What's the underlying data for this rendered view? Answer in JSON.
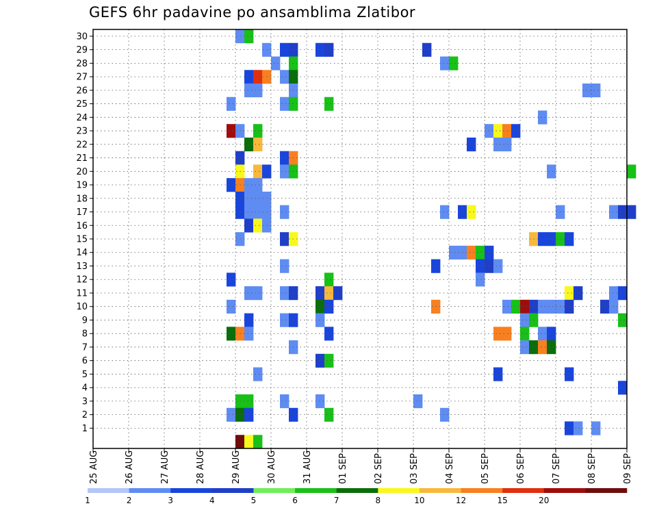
{
  "chart_data": {
    "type": "heatmap",
    "title": "GEFS 6hr padavine po ansamblima Zlatibor",
    "xlabel": "",
    "ylabel": "",
    "y_range": [
      0,
      30
    ],
    "x_ticks": [
      "25 AUG",
      "26 AUG",
      "27 AUG",
      "28 AUG",
      "29 AUG",
      "30 AUG",
      "31 AUG",
      "01 SEP",
      "02 SEP",
      "03 SEP",
      "04 SEP",
      "05 SEP",
      "06 SEP",
      "07 SEP",
      "08 SEP",
      "09 SEP"
    ],
    "x_note": "x values are 6-hour steps counted from 25 AUG 00z (4 steps per day)",
    "y_ticks": [
      1,
      2,
      3,
      4,
      5,
      6,
      7,
      8,
      9,
      10,
      11,
      12,
      13,
      14,
      15,
      16,
      17,
      18,
      19,
      20,
      21,
      22,
      23,
      24,
      25,
      26,
      27,
      28,
      29,
      30
    ],
    "grid": true,
    "colorbar": {
      "labels": [
        "1",
        "2",
        "3",
        "4",
        "5",
        "6",
        "7",
        "8",
        "10",
        "12",
        "15",
        "20"
      ],
      "colors": [
        "#b4c6f8",
        "#5f8cf2",
        "#1a45dc",
        "#1f3fc8",
        "#6fee5a",
        "#18c018",
        "#0a6e0a",
        "#f8f81c",
        "#f8b83c",
        "#f88020",
        "#e03010",
        "#a00c0c",
        "#6e0c0c"
      ]
    },
    "cells": [
      [
        16,
        30,
        1
      ],
      [
        17,
        30,
        5
      ],
      [
        19,
        29,
        1
      ],
      [
        21,
        29,
        2
      ],
      [
        22,
        29,
        3
      ],
      [
        25,
        29,
        2
      ],
      [
        26,
        29,
        3
      ],
      [
        37,
        29,
        3
      ],
      [
        20,
        28,
        1
      ],
      [
        22,
        28,
        5
      ],
      [
        39,
        28,
        1
      ],
      [
        40,
        28,
        5
      ],
      [
        17,
        27,
        2
      ],
      [
        18,
        27,
        12
      ],
      [
        19,
        27,
        10
      ],
      [
        21,
        27,
        1
      ],
      [
        22,
        27,
        6
      ],
      [
        17,
        26,
        1
      ],
      [
        18,
        26,
        1
      ],
      [
        22,
        26,
        1
      ],
      [
        55,
        26,
        1
      ],
      [
        56,
        26,
        1
      ],
      [
        15,
        25,
        1
      ],
      [
        21,
        25,
        1
      ],
      [
        22,
        25,
        5
      ],
      [
        26,
        25,
        5
      ],
      [
        50,
        24,
        1
      ],
      [
        15,
        23,
        15
      ],
      [
        16,
        23,
        1
      ],
      [
        18,
        23,
        5
      ],
      [
        44,
        23,
        1
      ],
      [
        45,
        23,
        7
      ],
      [
        46,
        23,
        10
      ],
      [
        47,
        23,
        2
      ],
      [
        17,
        22,
        6
      ],
      [
        18,
        22,
        8
      ],
      [
        42,
        22,
        2
      ],
      [
        45,
        22,
        1
      ],
      [
        46,
        22,
        1
      ],
      [
        16,
        21,
        3
      ],
      [
        21,
        21,
        2
      ],
      [
        22,
        21,
        10
      ],
      [
        16,
        20,
        7
      ],
      [
        18,
        20,
        8
      ],
      [
        19,
        20,
        2
      ],
      [
        21,
        20,
        1
      ],
      [
        22,
        20,
        5
      ],
      [
        51,
        20,
        1
      ],
      [
        60,
        20,
        5
      ],
      [
        15,
        19,
        2
      ],
      [
        16,
        19,
        10
      ],
      [
        17,
        19,
        1
      ],
      [
        18,
        19,
        1
      ],
      [
        16,
        18,
        2
      ],
      [
        17,
        18,
        1
      ],
      [
        18,
        18,
        1
      ],
      [
        19,
        18,
        1
      ],
      [
        16,
        17,
        2
      ],
      [
        17,
        17,
        1
      ],
      [
        18,
        17,
        1
      ],
      [
        19,
        17,
        1
      ],
      [
        21,
        17,
        1
      ],
      [
        39,
        17,
        1
      ],
      [
        41,
        17,
        2
      ],
      [
        42,
        17,
        7
      ],
      [
        52,
        17,
        1
      ],
      [
        58,
        17,
        1
      ],
      [
        59,
        17,
        3
      ],
      [
        60,
        17,
        3
      ],
      [
        17,
        16,
        3
      ],
      [
        18,
        16,
        7
      ],
      [
        19,
        16,
        1
      ],
      [
        16,
        15,
        1
      ],
      [
        21,
        15,
        3
      ],
      [
        22,
        15,
        7
      ],
      [
        49,
        15,
        8
      ],
      [
        50,
        15,
        2
      ],
      [
        51,
        15,
        2
      ],
      [
        52,
        15,
        5
      ],
      [
        53,
        15,
        2
      ],
      [
        40,
        14,
        1
      ],
      [
        41,
        14,
        1
      ],
      [
        42,
        14,
        10
      ],
      [
        43,
        14,
        5
      ],
      [
        44,
        14,
        2
      ],
      [
        21,
        13,
        1
      ],
      [
        38,
        13,
        2
      ],
      [
        43,
        13,
        2
      ],
      [
        44,
        13,
        3
      ],
      [
        45,
        13,
        1
      ],
      [
        15,
        12,
        2
      ],
      [
        26,
        12,
        5
      ],
      [
        43,
        12,
        1
      ],
      [
        17,
        11,
        1
      ],
      [
        18,
        11,
        1
      ],
      [
        21,
        11,
        1
      ],
      [
        22,
        11,
        3
      ],
      [
        25,
        11,
        3
      ],
      [
        26,
        11,
        8
      ],
      [
        27,
        11,
        3
      ],
      [
        53,
        11,
        7
      ],
      [
        54,
        11,
        3
      ],
      [
        58,
        11,
        1
      ],
      [
        59,
        11,
        2
      ],
      [
        15,
        10,
        1
      ],
      [
        25,
        10,
        6
      ],
      [
        26,
        10,
        2
      ],
      [
        38,
        10,
        10
      ],
      [
        46,
        10,
        1
      ],
      [
        47,
        10,
        5
      ],
      [
        48,
        10,
        15
      ],
      [
        49,
        10,
        3
      ],
      [
        50,
        10,
        1
      ],
      [
        51,
        10,
        1
      ],
      [
        52,
        10,
        1
      ],
      [
        53,
        10,
        3
      ],
      [
        57,
        10,
        3
      ],
      [
        58,
        10,
        1
      ],
      [
        17,
        9,
        2
      ],
      [
        21,
        9,
        1
      ],
      [
        22,
        9,
        2
      ],
      [
        25,
        9,
        1
      ],
      [
        48,
        9,
        1
      ],
      [
        49,
        9,
        5
      ],
      [
        59,
        9,
        5
      ],
      [
        15,
        8,
        6
      ],
      [
        16,
        8,
        10
      ],
      [
        17,
        8,
        1
      ],
      [
        26,
        8,
        2
      ],
      [
        45,
        8,
        10
      ],
      [
        46,
        8,
        10
      ],
      [
        48,
        8,
        5
      ],
      [
        50,
        8,
        1
      ],
      [
        51,
        8,
        2
      ],
      [
        22,
        7,
        1
      ],
      [
        48,
        7,
        1
      ],
      [
        49,
        7,
        6
      ],
      [
        50,
        7,
        10
      ],
      [
        51,
        7,
        6
      ],
      [
        25,
        6,
        3
      ],
      [
        26,
        6,
        5
      ],
      [
        18,
        5,
        1
      ],
      [
        45,
        5,
        2
      ],
      [
        53,
        5,
        2
      ],
      [
        59,
        4,
        2
      ],
      [
        16,
        3,
        5
      ],
      [
        17,
        3,
        5
      ],
      [
        21,
        3,
        1
      ],
      [
        25,
        3,
        1
      ],
      [
        36,
        3,
        1
      ],
      [
        15,
        2,
        1
      ],
      [
        16,
        2,
        6
      ],
      [
        17,
        2,
        2
      ],
      [
        22,
        2,
        2
      ],
      [
        26,
        2,
        5
      ],
      [
        39,
        2,
        1
      ],
      [
        53,
        1,
        2
      ],
      [
        54,
        1,
        1
      ],
      [
        56,
        1,
        1
      ],
      [
        16,
        0,
        20
      ],
      [
        17,
        0,
        7
      ],
      [
        18,
        0,
        5
      ]
    ]
  }
}
